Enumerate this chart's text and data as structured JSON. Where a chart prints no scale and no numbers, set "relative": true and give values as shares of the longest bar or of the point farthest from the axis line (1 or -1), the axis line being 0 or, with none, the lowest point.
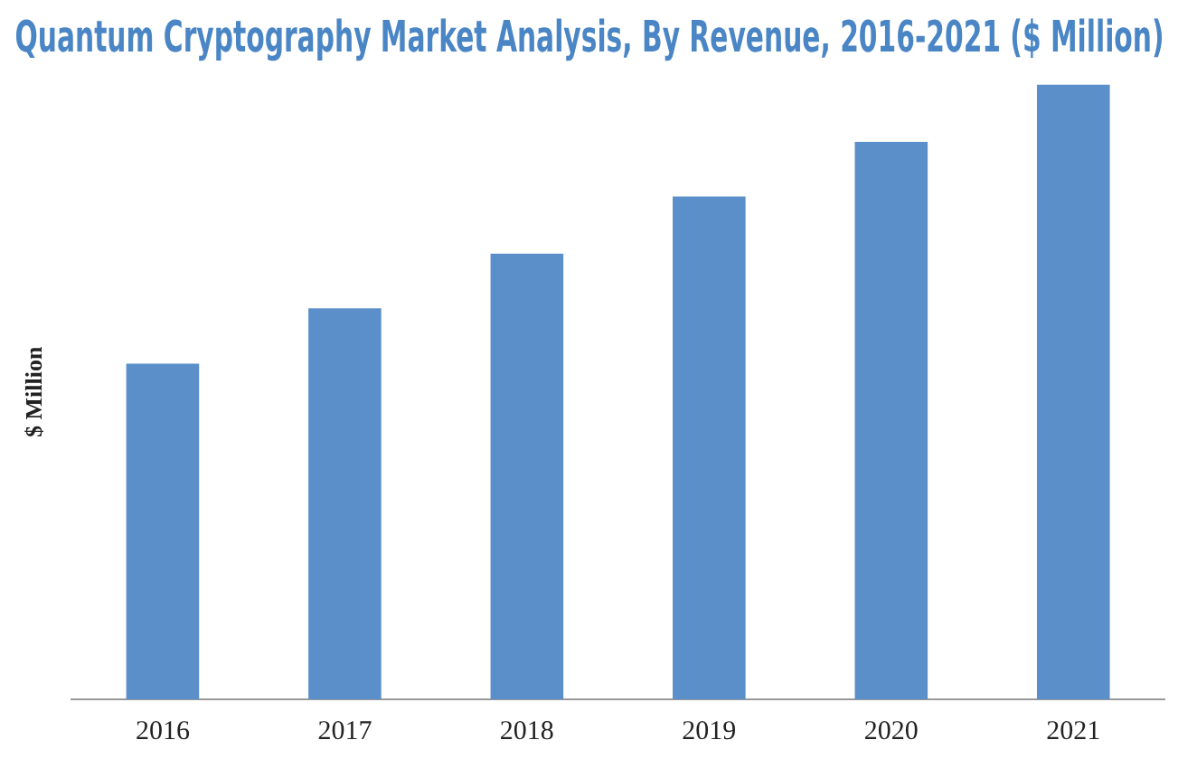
{
  "chart_data": {
    "type": "bar",
    "title": "Quantum Cryptography Market Analysis, By Revenue, 2016-2021 ($ Million)",
    "ylabel": "$ Million",
    "categories": [
      "2016",
      "2017",
      "2018",
      "2019",
      "2020",
      "2021"
    ],
    "values": [
      0.546,
      0.636,
      0.725,
      0.818,
      0.907,
      1
    ],
    "color": "#5b8fc9",
    "relative": true,
    "grid": false,
    "legend": false
  }
}
